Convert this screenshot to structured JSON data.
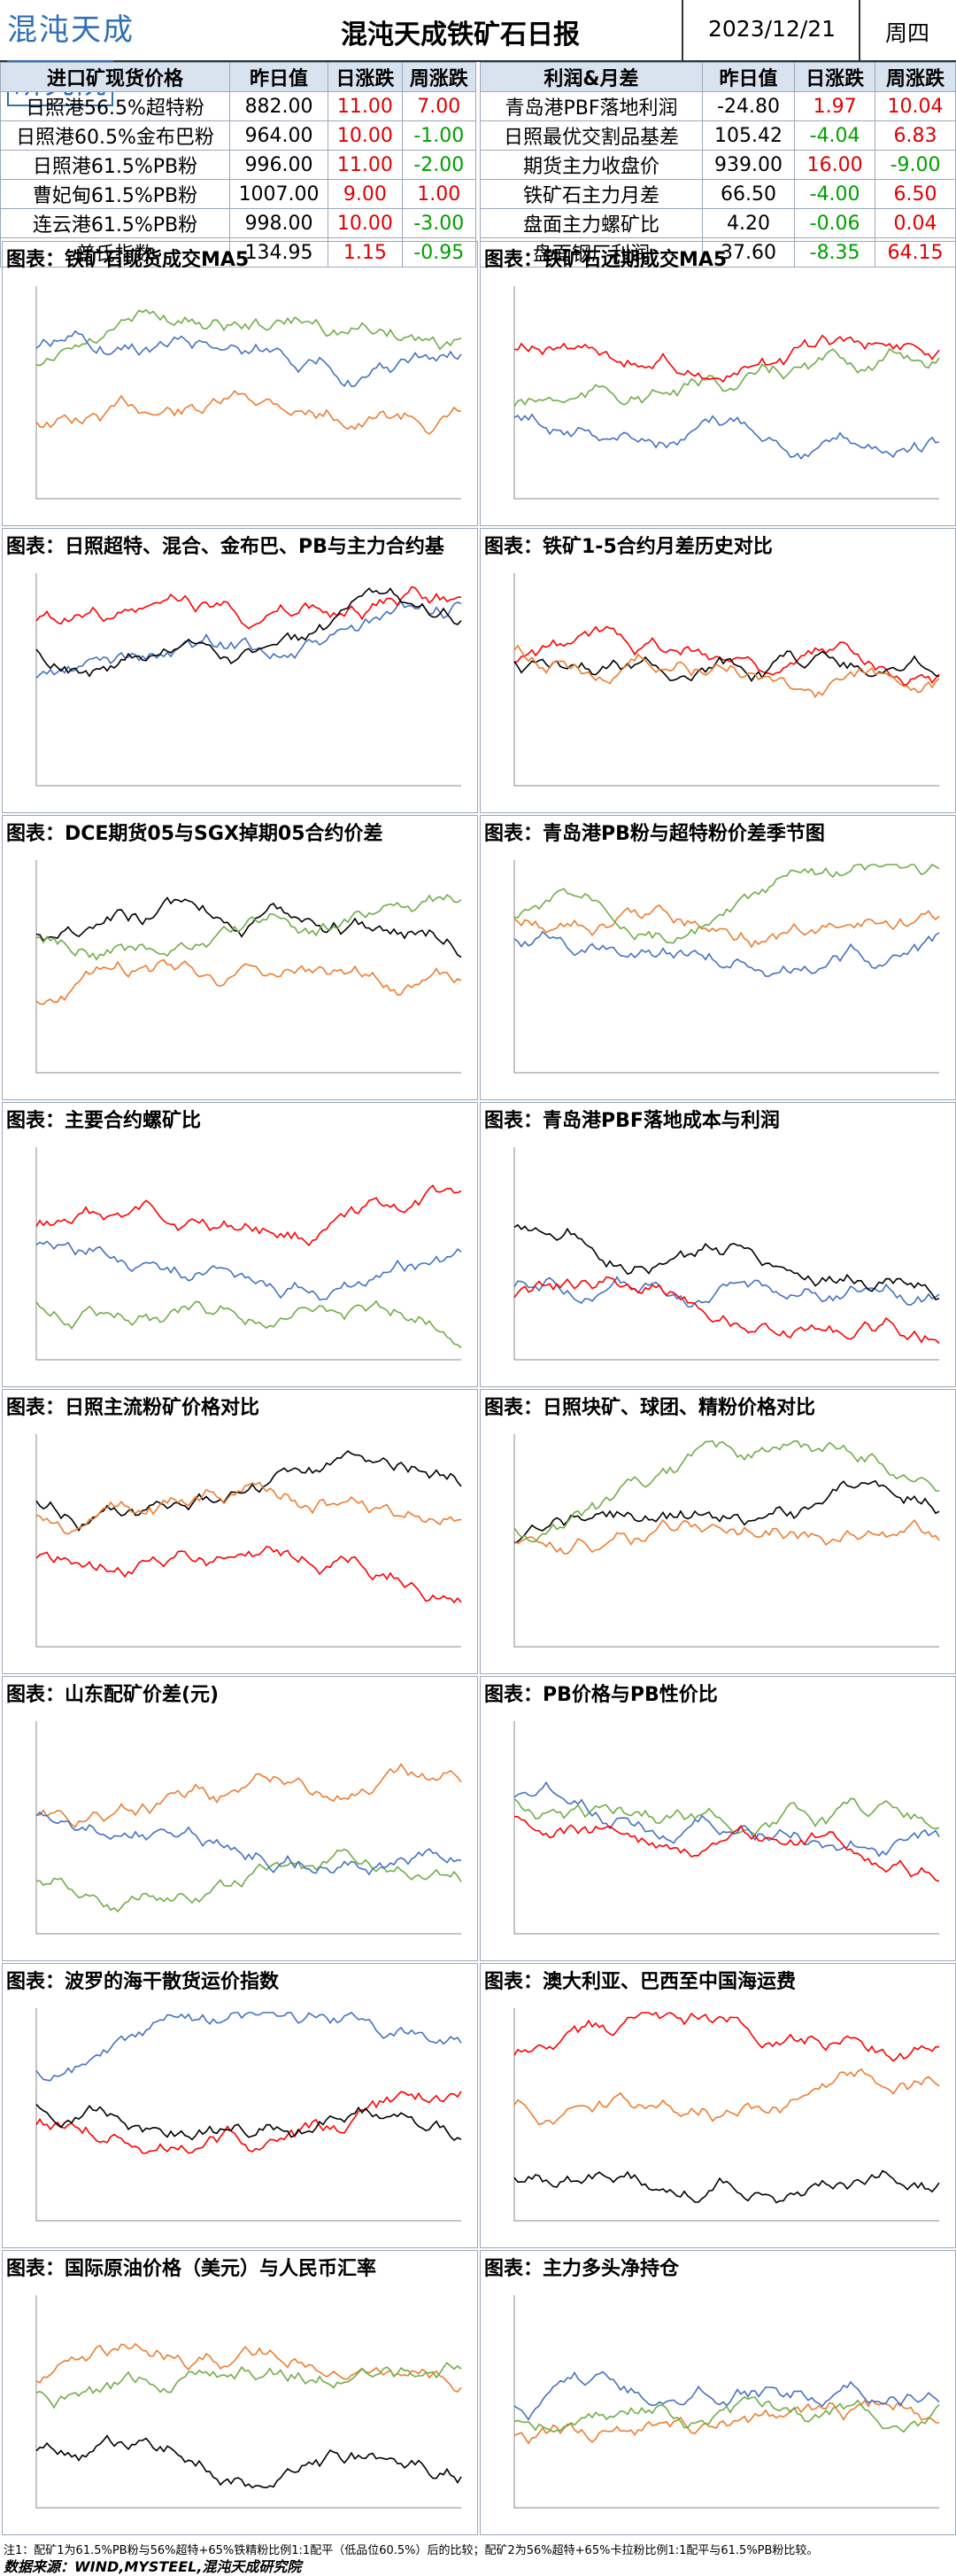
{
  "header": {
    "logo": "混沌天成",
    "logo_box": "研究院",
    "title": "混沌天成铁矿石日报",
    "date": "2023/12/21",
    "weekday": "周四"
  },
  "left_table": {
    "headers": [
      "进口矿现货价格",
      "昨日值",
      "日涨跌",
      "周涨跌"
    ],
    "rows": [
      [
        "日照港56.5%超特粉",
        "882.00",
        "11.00",
        "7.00"
      ],
      [
        "日照港60.5%金布巴粉",
        "964.00",
        "10.00",
        "-1.00"
      ],
      [
        "日照港61.5%PB粉",
        "996.00",
        "11.00",
        "-2.00"
      ],
      [
        "曹妃甸61.5%PB粉",
        "1007.00",
        "9.00",
        "1.00"
      ],
      [
        "连云港61.5%PB粉",
        "998.00",
        "10.00",
        "-3.00"
      ],
      [
        "普氏指数",
        "134.95",
        "1.15",
        "-0.95"
      ]
    ]
  },
  "right_table": {
    "headers": [
      "利润&月差",
      "昨日值",
      "日涨跌",
      "周涨跌"
    ],
    "rows": [
      [
        "青岛港PBF落地利润",
        "-24.80",
        "1.97",
        "10.04"
      ],
      [
        "日照最优交割品基差",
        "105.42",
        "-4.04",
        "6.83"
      ],
      [
        "期货主力收盘价",
        "939.00",
        "16.00",
        "-9.00"
      ],
      [
        "铁矿石主力月差",
        "66.50",
        "-4.00",
        "6.50"
      ],
      [
        "盘面主力螺矿比",
        "4.20",
        "-0.06",
        "0.04"
      ],
      [
        "盘面钢厂利润",
        "37.60",
        "-8.35",
        "64.15"
      ]
    ]
  },
  "colors": {
    "up": "#e00000",
    "down": "#00a000",
    "s1": "#ed7d31",
    "s2": "#70ad47",
    "s3": "#4472c4",
    "s4": "#ff0000",
    "s5": "#000000"
  },
  "chart_data": [
    {
      "type": "line",
      "title": "图表：铁矿石现货成交MA5"
    },
    {
      "type": "line",
      "title": "图表：铁矿石远期成交MA5"
    },
    {
      "type": "line",
      "title": "图表：日照超特、混合、金布巴、PB与主力合约基"
    },
    {
      "type": "line",
      "title": "图表：铁矿1-5合约月差历史对比"
    },
    {
      "type": "line",
      "title": "图表：DCE期货05与SGX掉期05合约价差"
    },
    {
      "type": "line",
      "title": "图表：青岛港PB粉与超特粉价差季节图"
    },
    {
      "type": "line",
      "title": "图表：主要合约螺矿比"
    },
    {
      "type": "line",
      "title": "图表：青岛港PBF落地成本与利润"
    },
    {
      "type": "line",
      "title": "图表：日照主流粉矿价格对比"
    },
    {
      "type": "line",
      "title": "图表：日照块矿、球团、精粉价格对比"
    },
    {
      "type": "line",
      "title": "图表：山东配矿价差(元)"
    },
    {
      "type": "line",
      "title": "图表：PB价格与PB性价比"
    },
    {
      "type": "line",
      "title": "图表：波罗的海干散货运价指数"
    },
    {
      "type": "line",
      "title": "图表：澳大利亚、巴西至中国海运费"
    },
    {
      "type": "line",
      "title": "图表：国际原油价格（美元）与人民币汇率"
    },
    {
      "type": "line",
      "title": "图表：主力多头净持仓"
    }
  ],
  "footer": {
    "note": "注1：配矿1为61.5%PB粉与56%超特+65%铁精粉比例1:1配平（低品位60.5%）后的比较；配矿2为56%超特+65%卡拉粉比例1:1配平与61.5%PB粉比较。",
    "source": "数据来源：WIND,MYSTEEL,混沌天成研究院"
  }
}
